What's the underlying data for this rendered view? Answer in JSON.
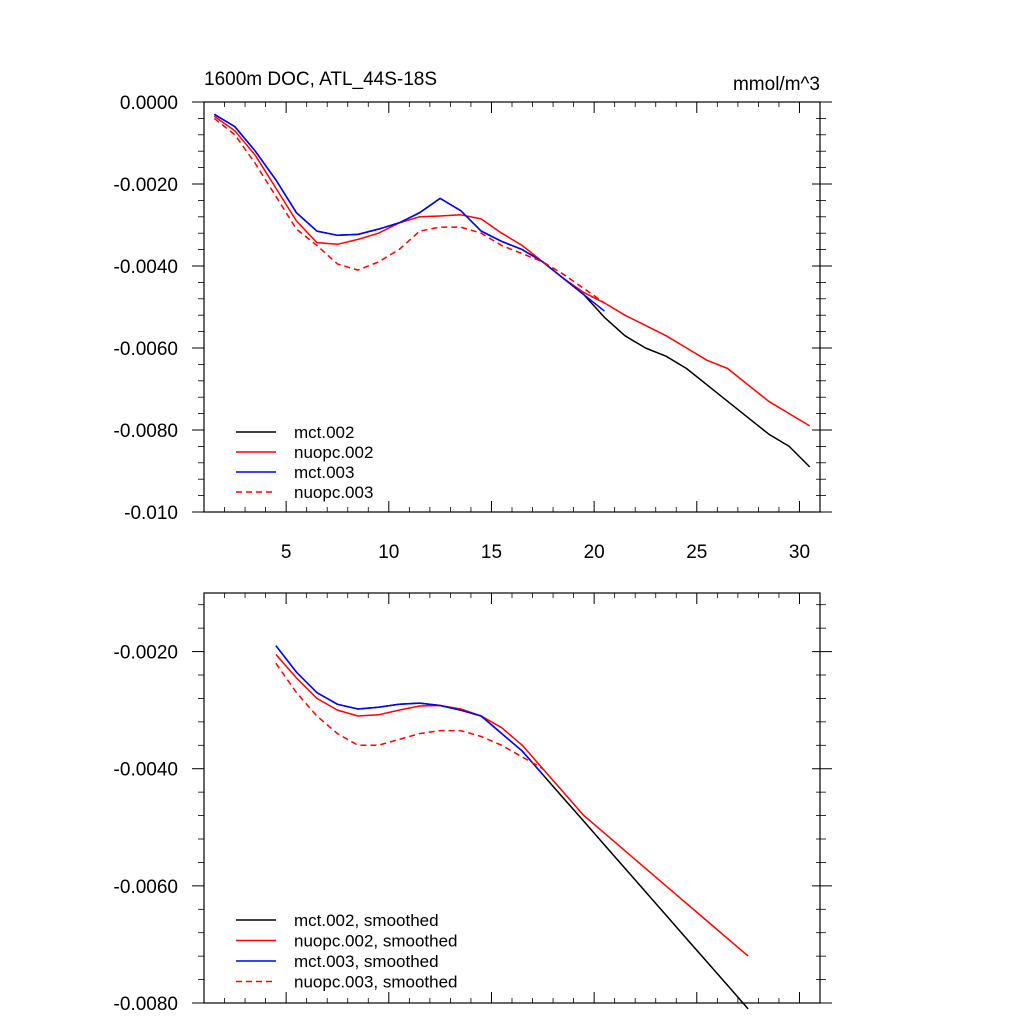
{
  "chart_data": [
    {
      "type": "line",
      "title": "1600m DOC, ATL_44S-18S",
      "units": "mmol/m^3",
      "xlim": [
        1,
        31
      ],
      "ylim": [
        -0.01,
        0.0
      ],
      "xticks": [
        5,
        10,
        15,
        20,
        25,
        30
      ],
      "xtick_labels": [
        "5",
        "10",
        "15",
        "20",
        "25",
        "30"
      ],
      "yticks": [
        0.0,
        -0.002,
        -0.004,
        -0.006,
        -0.008,
        -0.01
      ],
      "ytick_labels": [
        "0.0000",
        "-0.0020",
        "-0.0040",
        "-0.0060",
        "-0.0080",
        "-0.010"
      ],
      "series": [
        {
          "name": "mct.002",
          "color": "#000000",
          "dash": "",
          "x": [
            1.5,
            2.5,
            3.5,
            4.5,
            5.5,
            6.5,
            7.5,
            8.5,
            9.5,
            10.5,
            11.5,
            12.5,
            13.5,
            14.5,
            15.5,
            16.5,
            17.5,
            18.5,
            19.5,
            20.5,
            21.5,
            22.5,
            23.5,
            24.5,
            25.5,
            26.5,
            27.5,
            28.5,
            29.5,
            30.5
          ],
          "values": [
            -0.0003,
            -0.0006,
            -0.0012,
            -0.0019,
            -0.0027,
            -0.00315,
            -0.00325,
            -0.00323,
            -0.0031,
            -0.00295,
            -0.0027,
            -0.00235,
            -0.00265,
            -0.00315,
            -0.0034,
            -0.0036,
            -0.0039,
            -0.0043,
            -0.0047,
            -0.00525,
            -0.0057,
            -0.006,
            -0.0062,
            -0.0065,
            -0.0069,
            -0.0073,
            -0.0077,
            -0.0081,
            -0.0084,
            -0.0089
          ]
        },
        {
          "name": "nuopc.002",
          "color": "#ff0000",
          "dash": "",
          "x": [
            1.5,
            2.5,
            3.5,
            4.5,
            5.5,
            6.5,
            7.5,
            8.5,
            9.5,
            10.5,
            11.5,
            12.5,
            13.5,
            14.5,
            15.5,
            16.5,
            17.5,
            18.5,
            19.5,
            20.5,
            21.5,
            22.5,
            23.5,
            24.5,
            25.5,
            26.5,
            27.5,
            28.5,
            29.5,
            30.5
          ],
          "values": [
            -0.00035,
            -0.0007,
            -0.0013,
            -0.0021,
            -0.0029,
            -0.00343,
            -0.00347,
            -0.00335,
            -0.0032,
            -0.00295,
            -0.0028,
            -0.00278,
            -0.00275,
            -0.00285,
            -0.0032,
            -0.0035,
            -0.0039,
            -0.0043,
            -0.00465,
            -0.0049,
            -0.0052,
            -0.00545,
            -0.0057,
            -0.006,
            -0.0063,
            -0.0065,
            -0.0069,
            -0.0073,
            -0.0076,
            -0.0079
          ]
        },
        {
          "name": "mct.003",
          "color": "#0000ff",
          "dash": "",
          "x": [
            1.5,
            2.5,
            3.5,
            4.5,
            5.5,
            6.5,
            7.5,
            8.5,
            9.5,
            10.5,
            11.5,
            12.5,
            13.5,
            14.5,
            15.5,
            16.5,
            17.5,
            18.5,
            19.5,
            20.5
          ],
          "values": [
            -0.0003,
            -0.0006,
            -0.0012,
            -0.0019,
            -0.0027,
            -0.00315,
            -0.00325,
            -0.00323,
            -0.0031,
            -0.00295,
            -0.0027,
            -0.00235,
            -0.00265,
            -0.00315,
            -0.0034,
            -0.0036,
            -0.0039,
            -0.0043,
            -0.0047,
            -0.0051
          ]
        },
        {
          "name": "nuopc.003",
          "color": "#ff0000",
          "dash": "6,4",
          "x": [
            1.5,
            2.5,
            3.5,
            4.5,
            5.5,
            6.5,
            7.5,
            8.5,
            9.5,
            10.5,
            11.5,
            12.5,
            13.5,
            14.5,
            15.5,
            16.5,
            17.5,
            18.5,
            19.5,
            20.5
          ],
          "values": [
            -0.0004,
            -0.0008,
            -0.0015,
            -0.0023,
            -0.0031,
            -0.0035,
            -0.00395,
            -0.0041,
            -0.0039,
            -0.0036,
            -0.00315,
            -0.00305,
            -0.00305,
            -0.0032,
            -0.0035,
            -0.0037,
            -0.0039,
            -0.0042,
            -0.00455,
            -0.0049
          ]
        }
      ]
    },
    {
      "type": "line",
      "title": "",
      "xlim": [
        1,
        31
      ],
      "ylim": [
        -0.008,
        -0.001
      ],
      "xticks": [
        5,
        10,
        15,
        20,
        25,
        30
      ],
      "xtick_labels": [],
      "yticks": [
        -0.002,
        -0.004,
        -0.006,
        -0.008
      ],
      "ytick_labels": [
        "-0.0020",
        "-0.0040",
        "-0.0060",
        "-0.0080"
      ],
      "series": [
        {
          "name": "mct.002, smoothed",
          "color": "#000000",
          "dash": "",
          "x": [
            4.5,
            5.5,
            6.5,
            7.5,
            8.5,
            9.5,
            10.5,
            11.5,
            12.5,
            13.5,
            14.5,
            15.5,
            16.5,
            17.5,
            18.5,
            19.5,
            20.5,
            21.5,
            22.5,
            23.5,
            24.5,
            25.5,
            26.5,
            27.5
          ],
          "values": [
            -0.0019,
            -0.00235,
            -0.0027,
            -0.0029,
            -0.00298,
            -0.00295,
            -0.0029,
            -0.00288,
            -0.00292,
            -0.003,
            -0.0031,
            -0.0034,
            -0.0037,
            -0.0041,
            -0.0045,
            -0.0049,
            -0.0053,
            -0.0057,
            -0.0061,
            -0.0065,
            -0.0069,
            -0.0073,
            -0.0077,
            -0.0081
          ]
        },
        {
          "name": "nuopc.002, smoothed",
          "color": "#ff0000",
          "dash": "",
          "x": [
            4.5,
            5.5,
            6.5,
            7.5,
            8.5,
            9.5,
            10.5,
            11.5,
            12.5,
            13.5,
            14.5,
            15.5,
            16.5,
            17.5,
            18.5,
            19.5,
            20.5,
            21.5,
            22.5,
            23.5,
            24.5,
            25.5,
            26.5,
            27.5
          ],
          "values": [
            -0.00205,
            -0.00245,
            -0.0028,
            -0.003,
            -0.0031,
            -0.00308,
            -0.003,
            -0.00293,
            -0.00292,
            -0.00298,
            -0.0031,
            -0.0033,
            -0.0036,
            -0.004,
            -0.0044,
            -0.0048,
            -0.0051,
            -0.0054,
            -0.0057,
            -0.006,
            -0.0063,
            -0.0066,
            -0.0069,
            -0.0072
          ]
        },
        {
          "name": "mct.003, smoothed",
          "color": "#0000ff",
          "dash": "",
          "x": [
            4.5,
            5.5,
            6.5,
            7.5,
            8.5,
            9.5,
            10.5,
            11.5,
            12.5,
            13.5,
            14.5,
            15.5,
            16.5,
            17.5
          ],
          "values": [
            -0.0019,
            -0.00235,
            -0.0027,
            -0.0029,
            -0.00298,
            -0.00295,
            -0.0029,
            -0.00288,
            -0.00292,
            -0.003,
            -0.0031,
            -0.0034,
            -0.0037,
            -0.0041
          ]
        },
        {
          "name": "nuopc.003, smoothed",
          "color": "#ff0000",
          "dash": "6,4",
          "x": [
            4.5,
            5.5,
            6.5,
            7.5,
            8.5,
            9.5,
            10.5,
            11.5,
            12.5,
            13.5,
            14.5,
            15.5,
            16.5,
            17.5
          ],
          "values": [
            -0.0022,
            -0.0027,
            -0.0031,
            -0.0034,
            -0.0036,
            -0.0036,
            -0.0035,
            -0.0034,
            -0.00335,
            -0.00335,
            -0.00345,
            -0.0036,
            -0.0038,
            -0.004
          ]
        }
      ]
    }
  ]
}
